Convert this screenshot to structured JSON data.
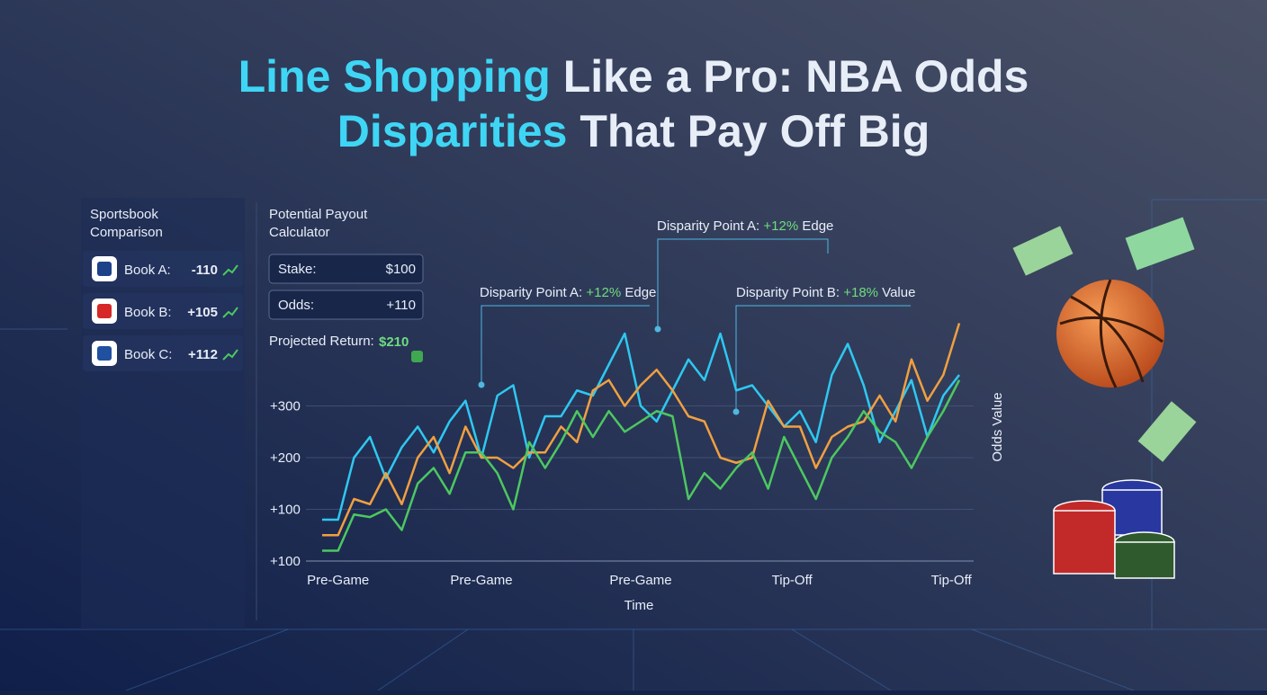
{
  "header": {
    "title_line1": {
      "highlight": "Line Shopping",
      "rest": " Like a Pro: NBA Odds"
    },
    "title_line2": {
      "highlight": "Disparities",
      "rest": " That Pay Off Big"
    }
  },
  "sidebar": {
    "title_line1": "Sportsbook",
    "title_line2": "Comparison",
    "books": [
      {
        "name": "Book A:",
        "odds": "-110"
      },
      {
        "name": "Book B:",
        "odds": "+105"
      },
      {
        "name": "Book C:",
        "odds": "+112"
      }
    ]
  },
  "calculator": {
    "title_line1": "Potential Payout",
    "title_line2": "Calculator",
    "stake_label": "Stake:",
    "stake": "$100",
    "odds_label": "Odds:",
    "odds": "+110",
    "return_label": "Projected Return:",
    "return": "$210"
  },
  "chart_data": {
    "type": "line",
    "x_label": "Time",
    "y_label": "Odds Value",
    "x": [
      0,
      1,
      2,
      3,
      4,
      5,
      6,
      7,
      8,
      9,
      10,
      11,
      12,
      13,
      14,
      15,
      16,
      17,
      18,
      19,
      20,
      21,
      22,
      23,
      24,
      25,
      26,
      27,
      28,
      29,
      30,
      31,
      32,
      33,
      34,
      35,
      36,
      37,
      38,
      39,
      40
    ],
    "xlim": [
      0,
      40
    ],
    "xticks": [
      {
        "value": 1,
        "label": "Pre-Game"
      },
      {
        "value": 10,
        "label": "Pre-Game"
      },
      {
        "value": 20,
        "label": "Pre-Game"
      },
      {
        "value": 29.5,
        "label": "Tip-Off"
      },
      {
        "value": 39.5,
        "label": "Tip-Off"
      }
    ],
    "ylim": [
      0,
      500
    ],
    "yticks": [
      {
        "value": 100,
        "label": "+100"
      },
      {
        "value": 200,
        "label": "+200"
      },
      {
        "value": 300,
        "label": "+300"
      }
    ],
    "y_baseline_label": "+100",
    "grid": true,
    "series": [
      {
        "color": "#2ec8f0",
        "values": [
          80,
          80,
          200,
          240,
          160,
          220,
          260,
          210,
          270,
          310,
          200,
          320,
          340,
          200,
          280,
          280,
          330,
          320,
          380,
          440,
          300,
          270,
          330,
          390,
          350,
          440,
          330,
          340,
          300,
          260,
          290,
          230,
          360,
          420,
          340,
          230,
          290,
          350,
          240,
          320,
          360
        ]
      },
      {
        "color": "#f0a040",
        "values": [
          50,
          50,
          120,
          110,
          170,
          110,
          200,
          240,
          170,
          260,
          200,
          200,
          180,
          210,
          210,
          260,
          230,
          330,
          350,
          300,
          340,
          370,
          330,
          280,
          270,
          200,
          190,
          200,
          310,
          260,
          260,
          180,
          240,
          260,
          270,
          320,
          270,
          390,
          310,
          360,
          460
        ]
      },
      {
        "color": "#4cc860",
        "values": [
          20,
          20,
          90,
          85,
          100,
          60,
          150,
          180,
          130,
          210,
          210,
          170,
          100,
          230,
          180,
          230,
          290,
          240,
          290,
          250,
          270,
          290,
          280,
          120,
          170,
          140,
          180,
          210,
          140,
          240,
          180,
          120,
          200,
          240,
          290,
          250,
          230,
          180,
          240,
          290,
          350
        ]
      }
    ],
    "annotations": [
      {
        "text": "Disparity Point A: ",
        "highlight": "+12%",
        "suffix": " Edge"
      },
      {
        "text": "Disparity Point A: ",
        "highlight": "+12%",
        "suffix": " Edge"
      },
      {
        "text": "Disparity Point B: ",
        "highlight": "+18%",
        "suffix": " Value"
      }
    ]
  }
}
